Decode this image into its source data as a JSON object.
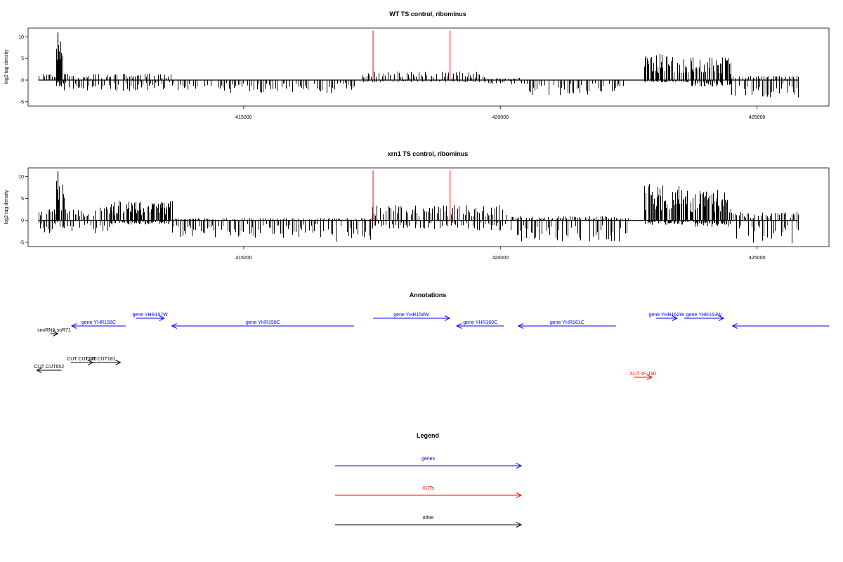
{
  "colors": {
    "genes": "#0000ff",
    "XUTs": "#ff0000",
    "other": "#000000",
    "marker": "#ff0000"
  },
  "chart_data": [
    {
      "type": "bar",
      "title": "WT TS control, ribominus",
      "ylabel": "log2 tag density",
      "xlim": [
        410800,
        426400
      ],
      "ylim": [
        -6,
        12
      ],
      "yticks": [
        -5,
        0,
        5,
        10
      ],
      "xticks": [
        415000,
        420000,
        425000
      ],
      "grid": false,
      "markers_x": [
        417520,
        419020
      ],
      "segments": [
        {
          "x0": 411000,
          "x1": 411350,
          "plus": 1.5,
          "minus": 0,
          "seed": 3
        },
        {
          "x0": 411350,
          "x1": 411500,
          "plus": 9,
          "minus": 1.5,
          "seed": 5,
          "peak": 11
        },
        {
          "x0": 411500,
          "x1": 413600,
          "plus": 1.5,
          "minus": 2.5,
          "seed": 7
        },
        {
          "x0": 413600,
          "x1": 417200,
          "plus": 0,
          "minus": 3,
          "seed": 11
        },
        {
          "x0": 417300,
          "x1": 419700,
          "plus": 2,
          "minus": 0.5,
          "seed": 13
        },
        {
          "x0": 419700,
          "x1": 420400,
          "plus": 0.5,
          "minus": 1,
          "seed": 17
        },
        {
          "x0": 420400,
          "x1": 422400,
          "plus": 0,
          "minus": 3.5,
          "seed": 19
        },
        {
          "x0": 422800,
          "x1": 423700,
          "plus": 6,
          "minus": 0.5,
          "seed": 23
        },
        {
          "x0": 423700,
          "x1": 424500,
          "plus": 5.5,
          "minus": 1.5,
          "seed": 29
        },
        {
          "x0": 424500,
          "x1": 425800,
          "plus": 1,
          "minus": 4,
          "seed": 31
        }
      ]
    },
    {
      "type": "bar",
      "title": "xrn1 TS control, ribominus",
      "ylabel": "log2 tag density",
      "xlim": [
        410800,
        426400
      ],
      "ylim": [
        -6,
        12
      ],
      "yticks": [
        -5,
        0,
        5,
        10
      ],
      "xticks": [
        415000,
        420000,
        425000
      ],
      "grid": false,
      "markers_x": [
        417520,
        419020
      ],
      "segments": [
        {
          "x0": 411000,
          "x1": 411350,
          "plus": 2.5,
          "minus": 3,
          "seed": 37
        },
        {
          "x0": 411350,
          "x1": 411500,
          "plus": 9,
          "minus": 2,
          "seed": 41,
          "peak": 11.2
        },
        {
          "x0": 411500,
          "x1": 412400,
          "plus": 3,
          "minus": 3,
          "seed": 43
        },
        {
          "x0": 412400,
          "x1": 413600,
          "plus": 4.5,
          "minus": 1,
          "seed": 47
        },
        {
          "x0": 413600,
          "x1": 416800,
          "plus": 0.5,
          "minus": 4,
          "seed": 53
        },
        {
          "x0": 416800,
          "x1": 417500,
          "plus": 0.5,
          "minus": 5.5,
          "seed": 59
        },
        {
          "x0": 417500,
          "x1": 419400,
          "plus": 3.5,
          "minus": 2,
          "seed": 61
        },
        {
          "x0": 419400,
          "x1": 420200,
          "plus": 3.5,
          "minus": 2.5,
          "seed": 67
        },
        {
          "x0": 420200,
          "x1": 422500,
          "plus": 1,
          "minus": 5,
          "seed": 71
        },
        {
          "x0": 422800,
          "x1": 423700,
          "plus": 8.5,
          "minus": 1,
          "seed": 73
        },
        {
          "x0": 423700,
          "x1": 424500,
          "plus": 7,
          "minus": 1.5,
          "seed": 79
        },
        {
          "x0": 424500,
          "x1": 425800,
          "plus": 2,
          "minus": 5.5,
          "seed": 83
        }
      ]
    }
  ],
  "annotations": {
    "title": "Annotations",
    "features": [
      {
        "label": "gene YHR156C",
        "kind": "genes",
        "strand": "-",
        "x0": 411650,
        "x1": 412700,
        "row": 1
      },
      {
        "label": "gene YHR157W",
        "kind": "genes",
        "strand": "+",
        "x0": 412900,
        "x1": 413450,
        "row": 0
      },
      {
        "label": "gene YHR158C",
        "kind": "genes",
        "strand": "-",
        "x0": 413600,
        "x1": 417150,
        "row": 1
      },
      {
        "label": "gene YHR159W",
        "kind": "genes",
        "strand": "+",
        "x0": 417520,
        "x1": 419010,
        "row": 0
      },
      {
        "label": "gene YHR160C",
        "kind": "genes",
        "strand": "-",
        "x0": 419150,
        "x1": 420070,
        "row": 1
      },
      {
        "label": "gene YHR161C",
        "kind": "genes",
        "strand": "-",
        "x0": 420350,
        "x1": 422250,
        "row": 1
      },
      {
        "label": "gene YHR162W",
        "kind": "genes",
        "strand": "+",
        "x0": 423030,
        "x1": 423440,
        "row": 0
      },
      {
        "label": "gene YHR163W",
        "kind": "genes",
        "strand": "+",
        "x0": 423580,
        "x1": 424350,
        "row": 0
      },
      {
        "label": "",
        "kind": "genes",
        "strand": "-",
        "x0": 424520,
        "x1": 426400,
        "row": 1
      },
      {
        "label": "snoRNA snR71",
        "kind": "other",
        "strand": "+",
        "x0": 411230,
        "x1": 411380,
        "row": 2
      },
      {
        "label": "CUT CUT652",
        "kind": "other",
        "strand": "-",
        "x0": 410970,
        "x1": 411450,
        "row": 4
      },
      {
        "label": "CUT CUT180",
        "kind": "other",
        "strand": "+",
        "x0": 411630,
        "x1": 412060,
        "row": 3
      },
      {
        "label": "CUT CUT181",
        "kind": "other",
        "strand": "+",
        "x0": 411830,
        "x1": 412600,
        "row": 3
      },
      {
        "label": "XUT sF-190",
        "kind": "XUTs",
        "strand": "+",
        "x0": 422600,
        "x1": 422950,
        "row": 5
      }
    ]
  },
  "legend": {
    "title": "Legend",
    "items": [
      {
        "label": "genes",
        "kind": "genes"
      },
      {
        "label": "XUTs",
        "kind": "XUTs"
      },
      {
        "label": "other",
        "kind": "other"
      }
    ]
  }
}
